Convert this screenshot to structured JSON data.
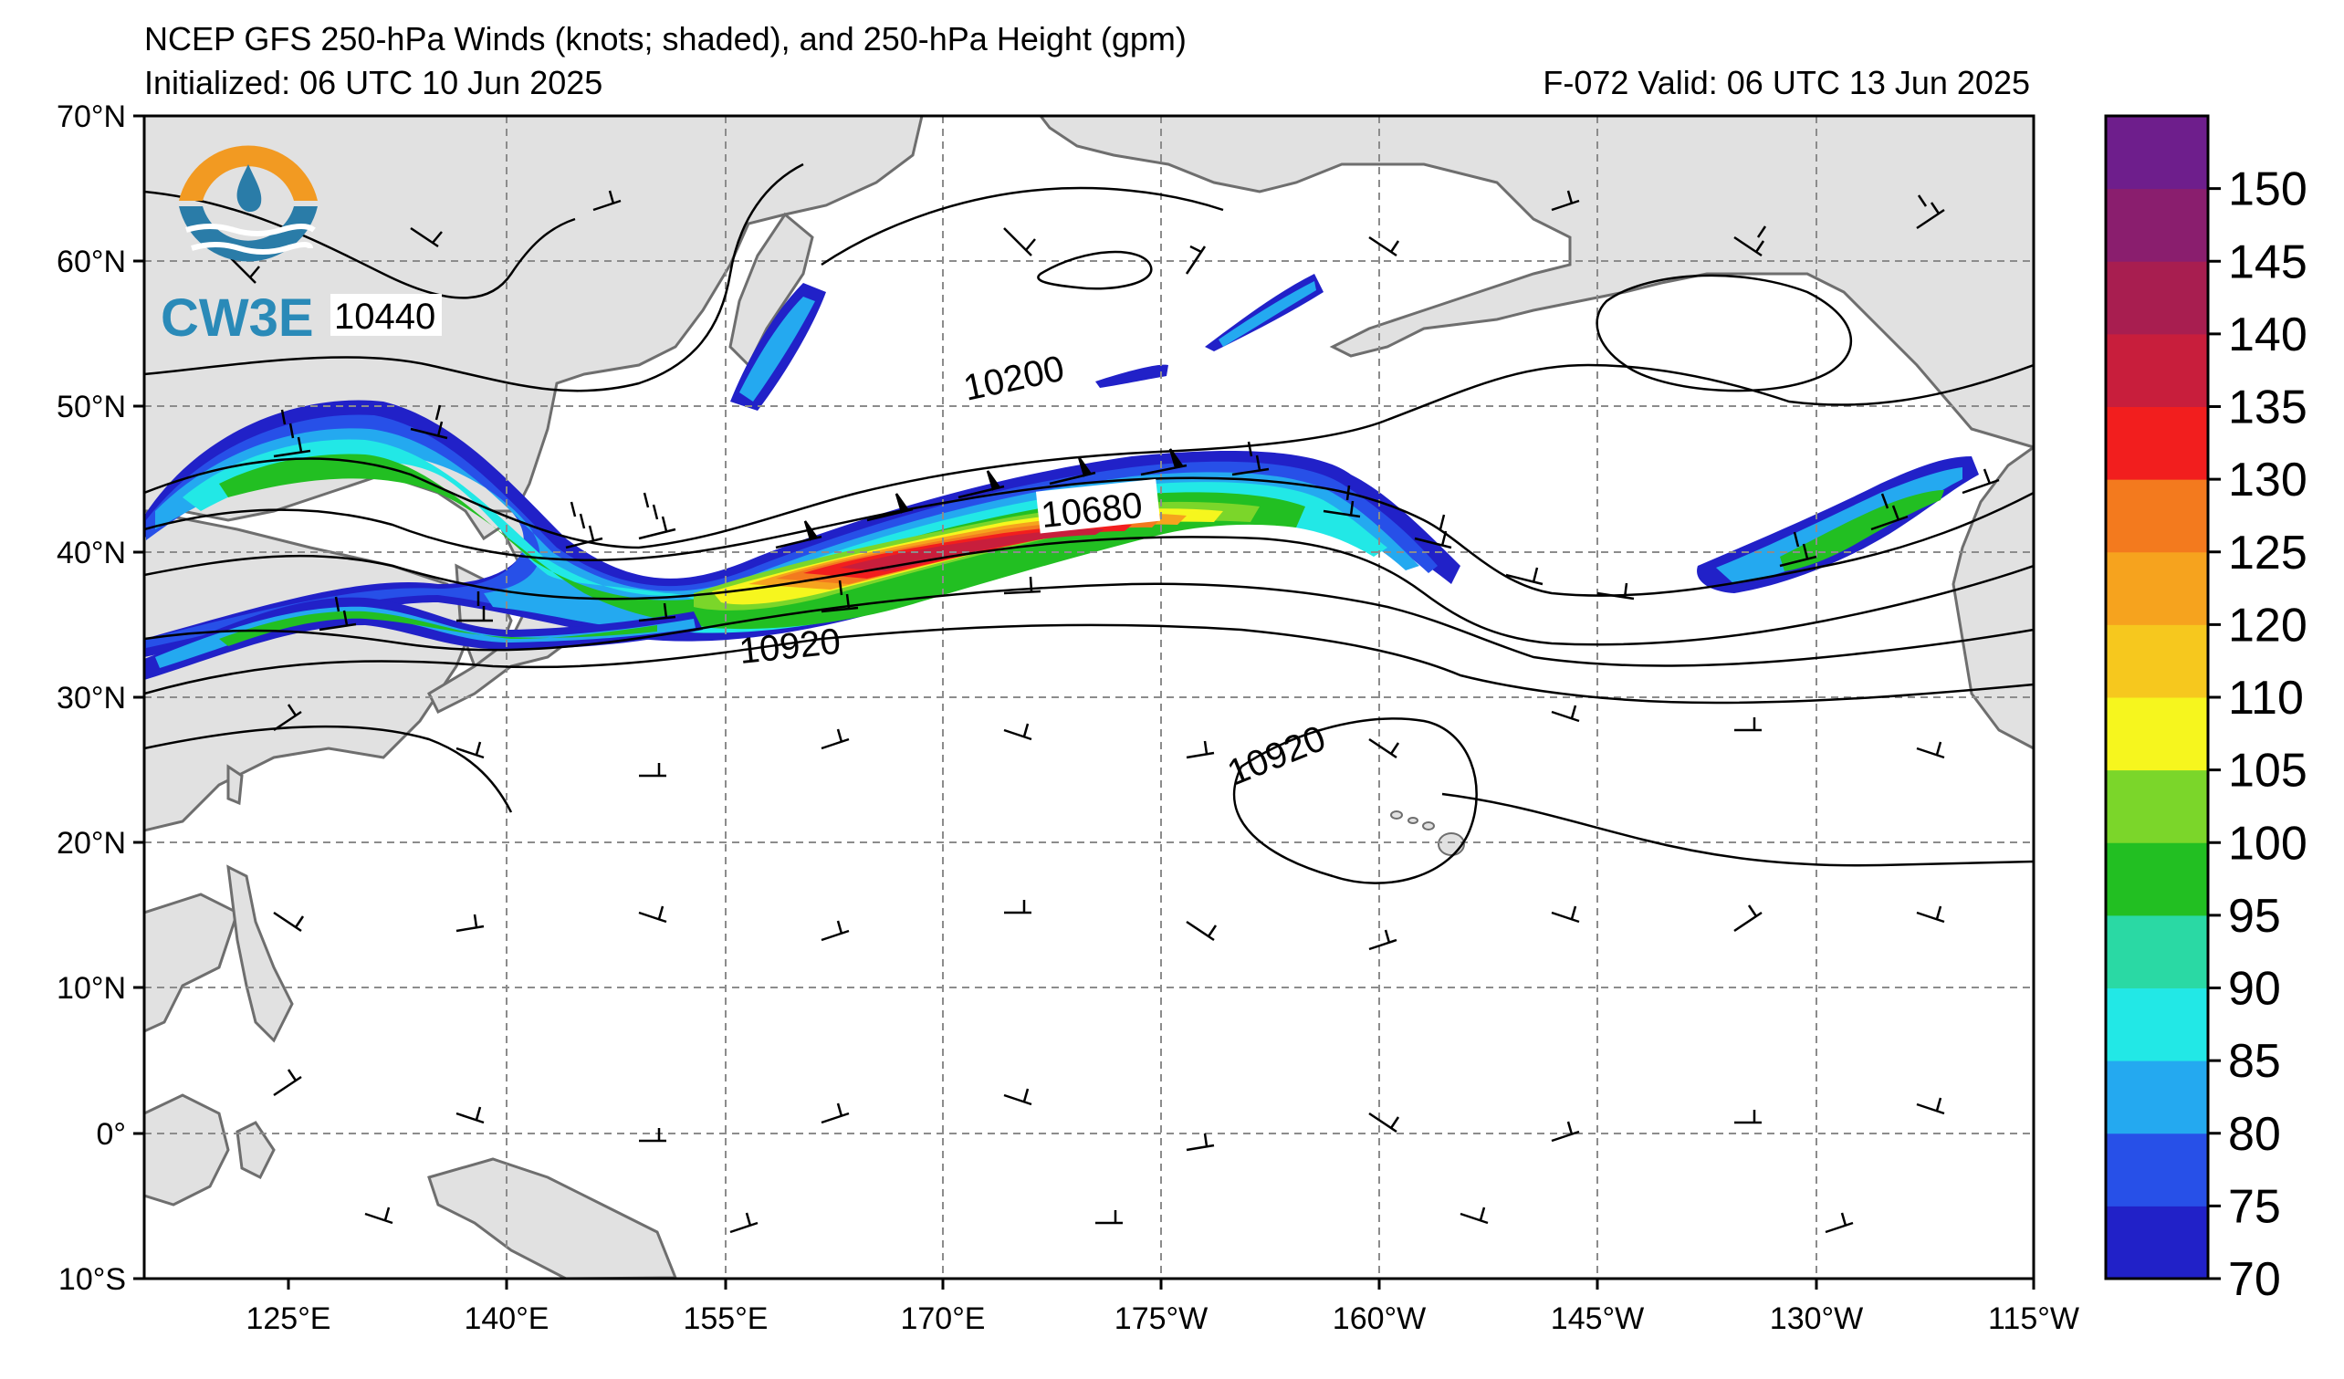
{
  "header": {
    "title": "NCEP GFS 250-hPa Winds (knots; shaded), and 250-hPa Height (gpm)",
    "initialized": "Initialized: 06 UTC 10 Jun 2025",
    "valid": "F-072  Valid: 06 UTC 13 Jun 2025"
  },
  "logo": {
    "text": "CW3E"
  },
  "lat_labels": [
    "70°N",
    "60°N",
    "50°N",
    "40°N",
    "30°N",
    "20°N",
    "10°N",
    "0°",
    "10°S"
  ],
  "lon_labels": [
    "125°E",
    "140°E",
    "155°E",
    "170°E",
    "175°W",
    "160°W",
    "145°W",
    "130°W",
    "115°W"
  ],
  "contour_labels": [
    "10440",
    "10200",
    "10680",
    "10920",
    "10920"
  ],
  "colorbar": {
    "ticks": [
      "70",
      "75",
      "80",
      "85",
      "90",
      "95",
      "100",
      "105",
      "110",
      "120",
      "125",
      "130",
      "135",
      "140",
      "145",
      "150"
    ],
    "colors": [
      "#2121c8",
      "#2750e8",
      "#24a9f0",
      "#22e8e6",
      "#2ad9a4",
      "#22bf22",
      "#7bd62a",
      "#f6f61e",
      "#f6c81e",
      "#f6a31e",
      "#f37a1e",
      "#f21e1e",
      "#c81e3c",
      "#a81e50",
      "#8a1e6e",
      "#6e1e8c"
    ]
  },
  "colors": {
    "land": "#e1e1e1",
    "coast": "#6e6e6e",
    "grid": "#8c8c8c"
  }
}
